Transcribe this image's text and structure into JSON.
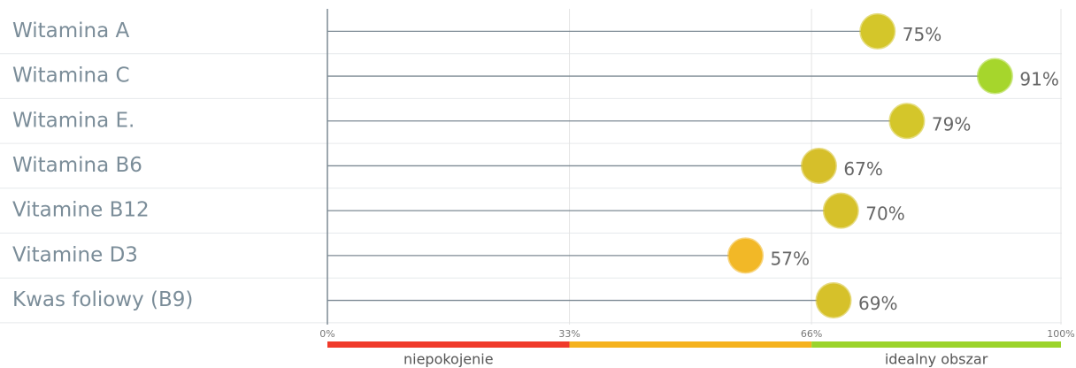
{
  "chart_data": {
    "type": "lollipop",
    "categories": [
      "Witamina A",
      "Witamina C",
      "Witamina E.",
      "Witamina B6",
      "Vitamine B12",
      "Vitamine D3",
      "Kwas foliowy (B9)"
    ],
    "values": [
      75,
      91,
      79,
      67,
      70,
      57,
      69
    ],
    "value_labels": [
      "75%",
      "91%",
      "79%",
      "67%",
      "70%",
      "57%",
      "69%"
    ],
    "colors": [
      "#d4c62a",
      "#a6d62c",
      "#d4c62a",
      "#d6bf2a",
      "#d6c12a",
      "#f2b827",
      "#d6c12a"
    ],
    "xlim": [
      0,
      100
    ],
    "xticks": [
      {
        "value": 0,
        "label": "0%"
      },
      {
        "value": 33,
        "label": "33%"
      },
      {
        "value": 66,
        "label": "66%"
      },
      {
        "value": 100,
        "label": "100%"
      }
    ],
    "grid": true,
    "zones": [
      {
        "from": 0,
        "to": 33,
        "color": "#f03a2a",
        "label": "niepokojenie"
      },
      {
        "from": 33,
        "to": 66,
        "color": "#f5b21e"
      },
      {
        "from": 66,
        "to": 100,
        "color": "#9bd42a",
        "label": "idealny obszar"
      }
    ]
  }
}
